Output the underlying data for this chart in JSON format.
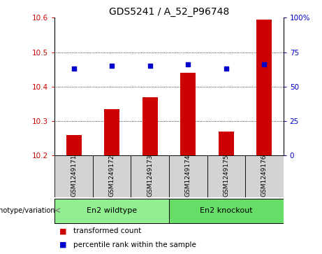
{
  "title": "GDS5241 / A_52_P96748",
  "samples": [
    "GSM1249171",
    "GSM1249172",
    "GSM1249173",
    "GSM1249174",
    "GSM1249175",
    "GSM1249176"
  ],
  "bar_values": [
    10.26,
    10.335,
    10.37,
    10.44,
    10.27,
    10.595
  ],
  "bar_bottom": 10.2,
  "percentile_values": [
    63,
    65,
    65,
    66,
    63,
    66
  ],
  "bar_color": "#cc0000",
  "dot_color": "#0000cc",
  "ylim_left": [
    10.2,
    10.6
  ],
  "ylim_right": [
    0,
    100
  ],
  "yticks_left": [
    10.2,
    10.3,
    10.4,
    10.5,
    10.6
  ],
  "yticks_right": [
    0,
    25,
    50,
    75,
    100
  ],
  "grid_lines": [
    10.3,
    10.4,
    10.5
  ],
  "groups": [
    {
      "label": "En2 wildtype",
      "indices": [
        0,
        1,
        2
      ],
      "color": "#90ee90"
    },
    {
      "label": "En2 knockout",
      "indices": [
        3,
        4,
        5
      ],
      "color": "#66dd66"
    }
  ],
  "group_label_prefix": "genotype/variation",
  "legend_bar_label": "transformed count",
  "legend_dot_label": "percentile rank within the sample",
  "sample_bg_color": "#d3d3d3",
  "plot_bg_color": "#ffffff",
  "title_fontsize": 10,
  "tick_fontsize": 7.5,
  "sample_fontsize": 6.5,
  "group_fontsize": 8,
  "legend_fontsize": 7.5,
  "bar_width": 0.4,
  "xlim": [
    -0.5,
    5.5
  ]
}
